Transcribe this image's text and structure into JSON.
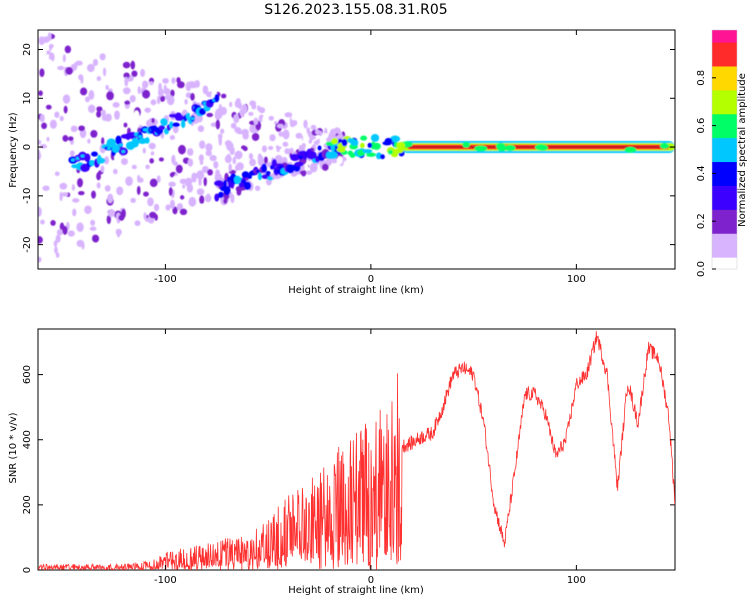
{
  "title": "S126.2023.155.08.31.R05",
  "chart_data": [
    {
      "type": "heatmap",
      "xlabel": "Height of straight line (km)",
      "ylabel": "Frequency (Hz)",
      "xlim": [
        -162,
        148
      ],
      "ylim": [
        -25,
        24
      ],
      "xticks": [
        -100,
        0,
        100
      ],
      "yticks": [
        -20,
        -10,
        0,
        10,
        20
      ],
      "colorbar": {
        "label": "Normalized spectral amplitude",
        "range": [
          0,
          1
        ],
        "ticks": [
          0.0,
          0.2,
          0.4,
          0.6,
          0.8
        ],
        "colors": [
          "#ffffff",
          "#d8b4fe",
          "#7e22ce",
          "#3b00ff",
          "#0000ff",
          "#00c8ff",
          "#00ff66",
          "#b4ff00",
          "#ffd800",
          "#ff2a2a",
          "#ff1493"
        ]
      },
      "features": [
        {
          "name": "steady-carrier",
          "x_from": 15,
          "x_to": 148,
          "frequency": 0,
          "amplitude": 1.0
        },
        {
          "name": "ascending-track",
          "x_from": -145,
          "x_to": -75,
          "frequency_from": -4,
          "frequency_to": 9,
          "amplitude": 0.5
        },
        {
          "name": "descending-track",
          "x_from": -75,
          "x_to": -15,
          "frequency_from": -9,
          "frequency_to": 0,
          "amplitude": 0.45
        }
      ]
    },
    {
      "type": "line",
      "xlabel": "Height of straight line (km)",
      "ylabel": "SNR (10 * v/v)",
      "xlim": [
        -162,
        148
      ],
      "ylim": [
        0,
        740
      ],
      "xticks": [
        -100,
        0,
        100
      ],
      "yticks": [
        0,
        200,
        400,
        600
      ],
      "color": "#ff3030",
      "envelope": {
        "x": [
          -162,
          -140,
          -120,
          -110,
          -100,
          -90,
          -80,
          -70,
          -60,
          -50,
          -40,
          -30,
          -20,
          -10,
          0,
          10,
          15,
          20,
          25,
          30,
          35,
          40,
          45,
          50,
          55,
          60,
          65,
          70,
          75,
          80,
          85,
          90,
          95,
          100,
          105,
          110,
          115,
          120,
          125,
          130,
          135,
          140,
          145,
          148
        ],
        "y": [
          10,
          10,
          10,
          15,
          30,
          40,
          50,
          55,
          60,
          90,
          130,
          150,
          200,
          230,
          260,
          300,
          380,
          390,
          410,
          420,
          500,
          600,
          620,
          600,
          450,
          200,
          80,
          300,
          540,
          540,
          480,
          350,
          400,
          570,
          600,
          720,
          600,
          250,
          580,
          450,
          680,
          650,
          470,
          210
        ]
      }
    }
  ]
}
